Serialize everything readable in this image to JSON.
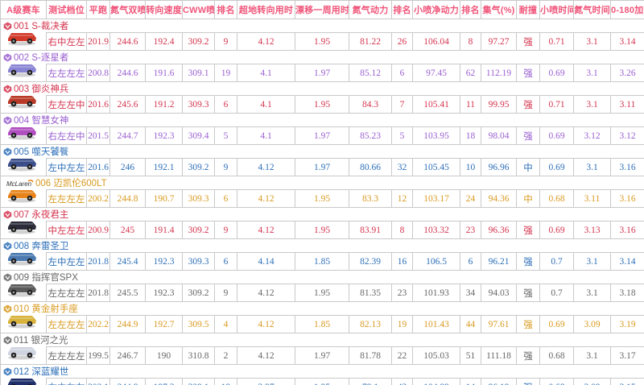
{
  "headers": [
    "A级赛车",
    "测试档位",
    "平跑",
    "氮气双喷",
    "转向速度",
    "CWW喷",
    "排名",
    "超地转向用时",
    "漂移一周用时",
    "氮气动力",
    "排名",
    "小喷净动力",
    "排名",
    "集气(%)",
    "耐撞",
    "小喷时间",
    "氮气时间",
    "0-180加速"
  ],
  "colors": {
    "header": "#f0557a",
    "red": "#d4354f",
    "purple": "#9a5fd0",
    "blue": "#2d6fb8",
    "green": "#2f7b2f",
    "orange": "#d89a20",
    "gray": "#666666"
  },
  "cars": [
    {
      "name": "001 S-裁决者",
      "color": "red",
      "badge": "red-badge-icon",
      "car_color": "#d23a2a",
      "values": [
        "右中左左",
        "201.9",
        "244.6",
        "192.4",
        "309.2",
        "9",
        "4.12",
        "1.95",
        "81.22",
        "26",
        "106.04",
        "8",
        "97.27",
        "强",
        "0.71",
        "3.1",
        "3.14"
      ]
    },
    {
      "name": "002 S-逐星者",
      "color": "purple",
      "badge": "purple-badge-icon",
      "car_color": "#8a84d4",
      "values": [
        "左左左左",
        "200.8",
        "244.6",
        "191.6",
        "309.1",
        "19",
        "4.1",
        "1.97",
        "85.12",
        "6",
        "97.45",
        "62",
        "112.19",
        "强",
        "0.69",
        "3.1",
        "3.26"
      ]
    },
    {
      "name": "003 御炎神兵",
      "color": "red",
      "badge": "red-badge-icon",
      "car_color": "#b83a26",
      "values": [
        "左左左中",
        "201.6",
        "245.6",
        "191.2",
        "309.3",
        "6",
        "4.1",
        "1.95",
        "84.3",
        "7",
        "105.41",
        "11",
        "99.95",
        "强",
        "0.71",
        "3.1",
        "3.11"
      ]
    },
    {
      "name": "004 智慧女神",
      "color": "purple",
      "badge": "purple-badge-icon",
      "car_color": "#b04fc0",
      "values": [
        "右左左中",
        "201.5",
        "244.7",
        "192.3",
        "309.4",
        "5",
        "4.1",
        "1.97",
        "85.23",
        "5",
        "103.95",
        "18",
        "98.04",
        "强",
        "0.69",
        "3.12",
        "3.12"
      ]
    },
    {
      "name": "005 噬天饕餮",
      "color": "blue",
      "badge": "blue-badge-icon",
      "car_color": "#3a4e8a",
      "values": [
        "左中左左",
        "201.6",
        "246",
        "192.1",
        "309.2",
        "9",
        "4.12",
        "1.97",
        "80.66",
        "32",
        "105.45",
        "10",
        "96.96",
        "中",
        "0.69",
        "3.1",
        "3.16"
      ]
    },
    {
      "name": "006 迈凯伦600LT",
      "color": "orange",
      "badge": "mclaren-logo-icon",
      "car_color": "#e8841a",
      "values": [
        "左左左左",
        "200.2",
        "244.8",
        "190.7",
        "309.3",
        "6",
        "4.12",
        "1.95",
        "83.3",
        "12",
        "103.17",
        "24",
        "94.36",
        "中",
        "0.68",
        "3.11",
        "3.16"
      ]
    },
    {
      "name": "007 永夜君主",
      "color": "red",
      "badge": "red-badge-icon",
      "car_color": "#2b2b3a",
      "values": [
        "中左左左",
        "200.9",
        "245",
        "191.4",
        "309.2",
        "9",
        "4.12",
        "1.95",
        "83.91",
        "8",
        "103.32",
        "23",
        "96.36",
        "强",
        "0.69",
        "3.13",
        "3.16"
      ]
    },
    {
      "name": "008 奔雷圣卫",
      "color": "blue",
      "badge": "blue-badge-icon",
      "car_color": "#4a7ab0",
      "values": [
        "左中左左",
        "201.8",
        "245.4",
        "192.3",
        "309.3",
        "6",
        "4.14",
        "1.85",
        "82.39",
        "16",
        "106.5",
        "6",
        "96.21",
        "强",
        "0.7",
        "3.1",
        "3.14"
      ]
    },
    {
      "name": "009 指挥官SPX",
      "color": "gray",
      "badge": "gray-badge-icon",
      "car_color": "#5a5a5a",
      "values": [
        "左左左左",
        "201.8",
        "245.5",
        "192.3",
        "309.2",
        "9",
        "4.12",
        "1.95",
        "81.35",
        "23",
        "101.93",
        "34",
        "94.03",
        "强",
        "0.7",
        "3.1",
        "3.18"
      ]
    },
    {
      "name": "010 黄金射手座",
      "color": "orange",
      "badge": "gold-badge-icon",
      "car_color": "#d8b23a",
      "values": [
        "左左左左",
        "202.2",
        "244.9",
        "192.7",
        "309.5",
        "4",
        "4.12",
        "1.85",
        "82.13",
        "19",
        "101.43",
        "44",
        "97.61",
        "强",
        "0.69",
        "3.09",
        "3.19"
      ]
    },
    {
      "name": "011 银河之光",
      "color": "gray",
      "badge": "gray-badge-icon",
      "car_color": "#d0d4e0",
      "values": [
        "左左左左",
        "199.5",
        "246.7",
        "190",
        "310.8",
        "2",
        "4.12",
        "1.97",
        "81.78",
        "22",
        "105.03",
        "51",
        "111.18",
        "强",
        "0.68",
        "3.1",
        "3.17"
      ]
    },
    {
      "name": "012 深蓝耀世",
      "color": "blue",
      "badge": "blue-badge-icon",
      "car_color": "#1f2f6a",
      "values": [
        "右中左左",
        "202.1",
        "244.8",
        "197.3",
        "309.1",
        "19",
        "3.97",
        "1.95",
        "79.1",
        "43",
        "104.89",
        "14",
        "96.19",
        "强",
        "0.68",
        "3.09",
        "3.15"
      ]
    }
  ]
}
